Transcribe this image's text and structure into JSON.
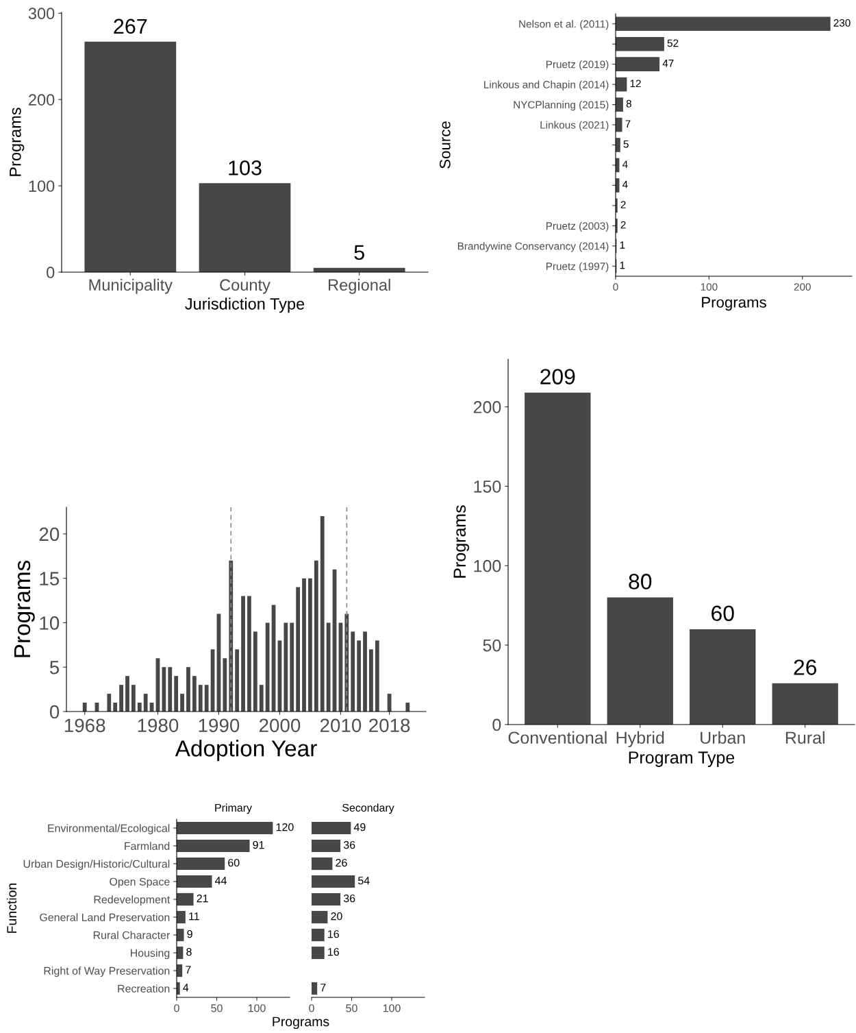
{
  "chart_data": [
    {
      "type": "bar",
      "xlabel": "Jurisdiction Type",
      "ylabel": "Programs",
      "categories": [
        "Municipality",
        "County",
        "Regional"
      ],
      "values": [
        267,
        103,
        5
      ],
      "color": "#474747",
      "ylim": [
        0,
        301
      ],
      "yticks": [
        0,
        100,
        200,
        300
      ],
      "data_labels": true,
      "grid": false
    },
    {
      "type": "bar",
      "orientation": "horizontal",
      "xlabel": "Programs",
      "ylabel": "Source",
      "categories": [
        "Nelson et al. (2011)",
        null,
        "Pruetz (2019)",
        "Linkous and Chapin (2014)",
        "NYCPlanning (2015)",
        "Linkous (2021)",
        null,
        null,
        null,
        null,
        "Pruetz (2003)",
        "Brandywine Conservancy (2014)",
        "Pruetz (1997)"
      ],
      "values": [
        230,
        52,
        47,
        12,
        8,
        7,
        5,
        4,
        4,
        2,
        2,
        1,
        1
      ],
      "color": "#474747",
      "xlim": [
        0,
        253
      ],
      "xticks": [
        0,
        100,
        200
      ],
      "data_labels": true,
      "grid": false
    },
    {
      "type": "bar",
      "xlabel": "Adoption Year",
      "ylabel": "Programs",
      "x": [
        1968,
        1970,
        1972,
        1973,
        1974,
        1975,
        1976,
        1977,
        1978,
        1979,
        1980,
        1981,
        1982,
        1983,
        1984,
        1985,
        1986,
        1987,
        1988,
        1989,
        1990,
        1991,
        1992,
        1993,
        1994,
        1995,
        1996,
        1997,
        1998,
        1999,
        2000,
        2001,
        2002,
        2003,
        2004,
        2005,
        2006,
        2007,
        2008,
        2009,
        2010,
        2011,
        2012,
        2013,
        2014,
        2015,
        2016,
        2018,
        2021
      ],
      "values": [
        1,
        1,
        2,
        1,
        3,
        4,
        3,
        1,
        2,
        1,
        6,
        5,
        5,
        4,
        2,
        5,
        4,
        3,
        3,
        7,
        11,
        6,
        17,
        7,
        13,
        13,
        9,
        3,
        10,
        12,
        8,
        10,
        10,
        14,
        15,
        15,
        17,
        22,
        10,
        16,
        10,
        11,
        9,
        8,
        9,
        7,
        8,
        2,
        1
      ],
      "color": "#474747",
      "xlim": [
        1965,
        2024
      ],
      "xticks": [
        1968,
        1980,
        1990,
        2000,
        2010,
        2018
      ],
      "ylim": [
        0,
        23
      ],
      "yticks": [
        0,
        5,
        10,
        15,
        20
      ],
      "grid": false,
      "ref_lines": [
        {
          "axis": "x",
          "value": 1992,
          "label": null,
          "color": "#8c8c8c",
          "line_style": "dashed"
        },
        {
          "axis": "x",
          "value": 2011,
          "label": null,
          "color": "#8c8c8c",
          "line_style": "dashed"
        }
      ]
    },
    {
      "type": "bar",
      "xlabel": "Program Type",
      "ylabel": "Programs",
      "categories": [
        "Conventional",
        "Hybrid",
        "Urban",
        "Rural"
      ],
      "values": [
        209,
        80,
        60,
        26
      ],
      "color": "#474747",
      "ylim": [
        0,
        230
      ],
      "yticks": [
        0,
        50,
        100,
        150,
        200
      ],
      "data_labels": true,
      "grid": false
    },
    {
      "type": "bar",
      "orientation": "horizontal",
      "title": "Primary",
      "xlabel": "Programs",
      "ylabel": "Function",
      "categories": [
        "Environmental/Ecological",
        "Farmland",
        "Urban Design/Historic/Cultural",
        "Open Space",
        "Redevelopment",
        "General Land Preservation",
        "Rural Character",
        "Housing",
        "Right of Way Preservation",
        "Recreation"
      ],
      "values": [
        120,
        91,
        60,
        44,
        21,
        11,
        9,
        8,
        7,
        4
      ],
      "color": "#474747",
      "xlim": [
        0,
        141
      ],
      "xticks": [
        0,
        50,
        100
      ],
      "data_labels": true,
      "grid": false
    },
    {
      "type": "bar",
      "orientation": "horizontal",
      "title": "Secondary",
      "categories": [
        null,
        null,
        null,
        null,
        null,
        null,
        null,
        null,
        null,
        null
      ],
      "values": [
        49,
        36,
        26,
        54,
        36,
        20,
        16,
        16,
        null,
        7
      ],
      "color": "#474747",
      "xlim": [
        0,
        141
      ],
      "xticks": [
        0,
        50,
        100
      ],
      "data_labels": true,
      "grid": false,
      "tick_labels": "x"
    }
  ]
}
